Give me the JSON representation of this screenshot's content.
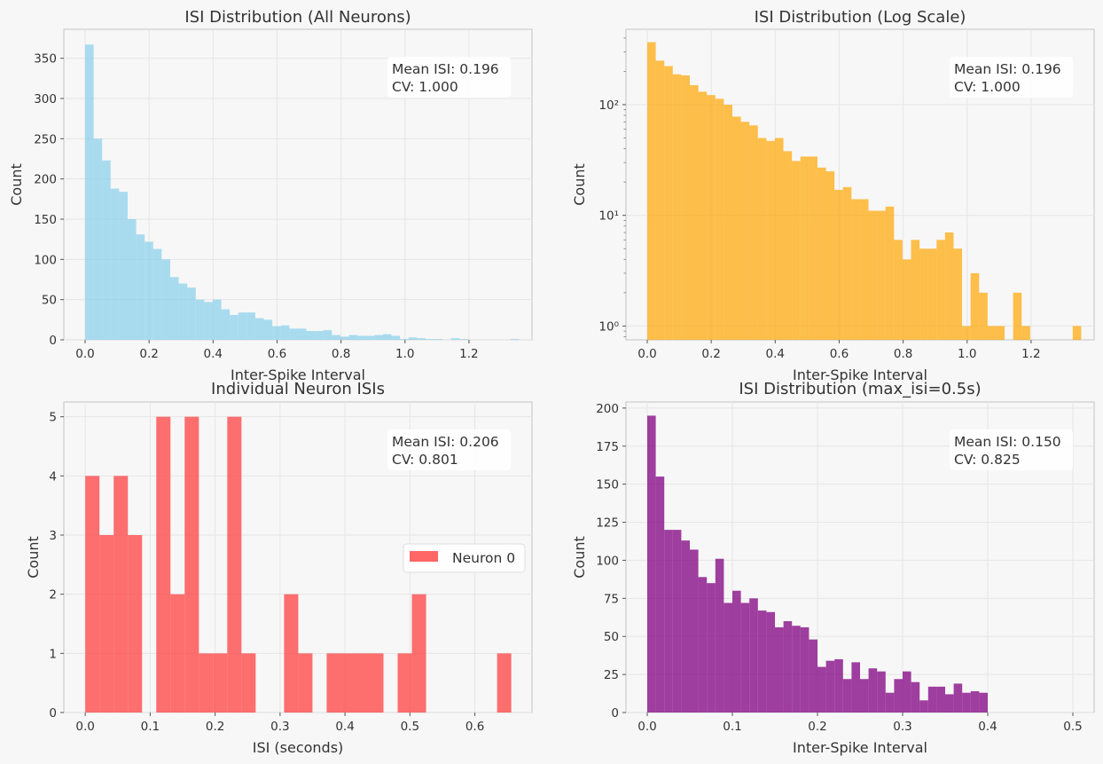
{
  "chart_data": [
    {
      "type": "bar",
      "title": "ISI Distribution (All Neurons)",
      "xlabel": "Inter-Spike Interval",
      "ylabel": "Count",
      "xlim": [
        -0.0665,
        1.397
      ],
      "ylim": [
        0,
        386
      ],
      "yscale": "linear",
      "xticks": [
        0,
        0.2,
        0.4,
        0.6,
        0.8,
        1.0,
        1.2
      ],
      "xtick_labels": [
        "0.0",
        "0.2",
        "0.4",
        "0.6",
        "0.8",
        "1.0",
        "1.2"
      ],
      "yticks": [
        0,
        50,
        100,
        150,
        200,
        250,
        300,
        350
      ],
      "ytick_labels": [
        "0",
        "50",
        "100",
        "150",
        "200",
        "250",
        "300",
        "350"
      ],
      "bin_start": 0,
      "bin_width": 0.0266,
      "values": [
        367,
        250,
        223,
        188,
        184,
        150,
        131,
        122,
        113,
        100,
        78,
        70,
        65,
        50,
        47,
        50,
        38,
        31,
        34,
        34,
        27,
        25,
        17,
        18,
        14,
        14,
        11,
        11,
        12,
        6,
        4,
        6,
        5,
        5,
        6,
        7,
        5,
        1,
        3,
        2,
        1,
        1,
        0,
        2,
        1,
        0,
        0,
        0,
        0,
        0,
        1
      ],
      "grid": true,
      "colors": {
        "bars": "#87ceeb"
      },
      "stats": [
        "Mean ISI: 0.196",
        "CV: 1.000"
      ]
    },
    {
      "type": "bar",
      "title": "ISI Distribution (Log Scale)",
      "xlabel": "Inter-Spike Interval",
      "ylabel": "Count",
      "xlim": [
        -0.0665,
        1.397
      ],
      "ylim": [
        0.75,
        480
      ],
      "yscale": "log",
      "xticks": [
        0,
        0.2,
        0.4,
        0.6,
        0.8,
        1.0,
        1.2
      ],
      "xtick_labels": [
        "0.0",
        "0.2",
        "0.4",
        "0.6",
        "0.8",
        "1.0",
        "1.2"
      ],
      "yticks": [
        1,
        10,
        100
      ],
      "ytick_labels": [
        "10⁰",
        "10¹",
        "10²"
      ],
      "bin_start": 0,
      "bin_width": 0.0266,
      "values": [
        367,
        250,
        223,
        188,
        184,
        150,
        131,
        122,
        113,
        100,
        78,
        70,
        65,
        50,
        47,
        50,
        38,
        31,
        34,
        34,
        27,
        25,
        17,
        18,
        14,
        14,
        11,
        11,
        12,
        6,
        4,
        6,
        5,
        5,
        6,
        7,
        5,
        1,
        3,
        2,
        1,
        1,
        0,
        2,
        1,
        0,
        0,
        0,
        0,
        0,
        1
      ],
      "grid": true,
      "colors": {
        "bars": "#ffa500"
      },
      "stats": [
        "Mean ISI: 0.196",
        "CV: 1.000"
      ]
    },
    {
      "type": "bar",
      "title": "Individual Neuron ISIs",
      "xlabel": "ISI (seconds)",
      "ylabel": "Count",
      "xlim": [
        -0.033,
        0.688
      ],
      "ylim": [
        0,
        5.25
      ],
      "yscale": "linear",
      "xticks": [
        0,
        0.1,
        0.2,
        0.3,
        0.4,
        0.5,
        0.6
      ],
      "xtick_labels": [
        "0.0",
        "0.1",
        "0.2",
        "0.3",
        "0.4",
        "0.5",
        "0.6"
      ],
      "yticks": [
        0,
        1,
        2,
        3,
        4,
        5
      ],
      "ytick_labels": [
        "0",
        "1",
        "2",
        "3",
        "4",
        "5"
      ],
      "bin_start": 0,
      "bin_width": 0.02187,
      "values": [
        4,
        3,
        4,
        3,
        0,
        5,
        2,
        5,
        1,
        1,
        5,
        1,
        0,
        0,
        2,
        1,
        0,
        1,
        1,
        1,
        1,
        0,
        1,
        2,
        0,
        0,
        0,
        0,
        0,
        1
      ],
      "grid": true,
      "legend": "top-right",
      "series": [
        {
          "name": "Neuron 0"
        }
      ],
      "colors": {
        "bars": "#ff4040"
      },
      "stats": [
        "Mean ISI: 0.206",
        "CV: 0.801"
      ]
    },
    {
      "type": "bar",
      "title": "ISI Distribution (max_isi=0.5s)",
      "xlabel": "Inter-Spike Interval",
      "ylabel": "Count",
      "xlim": [
        -0.025,
        0.525
      ],
      "ylim": [
        0,
        204
      ],
      "yscale": "linear",
      "xticks": [
        0,
        0.1,
        0.2,
        0.3,
        0.4,
        0.5
      ],
      "xtick_labels": [
        "0.0",
        "0.1",
        "0.2",
        "0.3",
        "0.4",
        "0.5"
      ],
      "yticks": [
        0,
        25,
        50,
        75,
        100,
        125,
        150,
        175,
        200
      ],
      "ytick_labels": [
        "0",
        "25",
        "50",
        "75",
        "100",
        "125",
        "150",
        "175",
        "200"
      ],
      "bin_start": 0,
      "bin_width": 0.01,
      "values": [
        195,
        155,
        120,
        120,
        113,
        107,
        89,
        85,
        101,
        72,
        80,
        72,
        75,
        67,
        66,
        56,
        60,
        57,
        56,
        48,
        30,
        34,
        35,
        22,
        33,
        22,
        29,
        27,
        13,
        22,
        27,
        20,
        8,
        17,
        17,
        12,
        19,
        13,
        14,
        13
      ],
      "grid": true,
      "colors": {
        "bars": "#800080"
      },
      "stats": [
        "Mean ISI: 0.150",
        "CV: 0.825"
      ]
    }
  ]
}
